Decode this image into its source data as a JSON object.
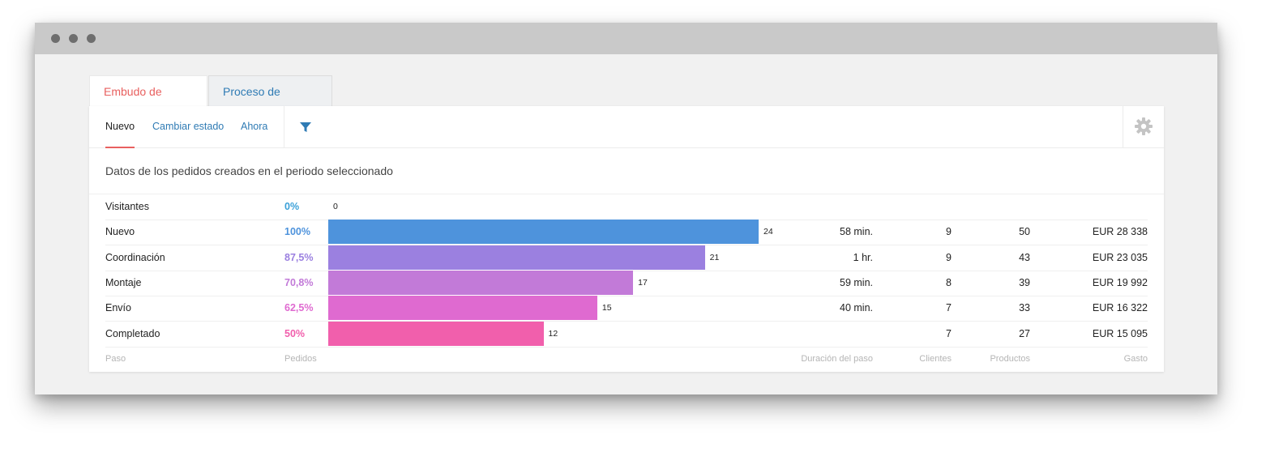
{
  "tabs": [
    {
      "label": "Embudo de ventas",
      "active": true
    },
    {
      "label": "Proceso de negocio",
      "active": false
    }
  ],
  "subnav": {
    "items": [
      {
        "label": "Nuevo",
        "active": true
      },
      {
        "label": "Cambiar estado",
        "active": false
      },
      {
        "label": "Ahora",
        "active": false
      }
    ],
    "filter_icon": "filter-icon",
    "settings_icon": "gear-icon"
  },
  "description": "Datos de los pedidos creados en el periodo seleccionado",
  "funnel": {
    "rows": [
      {
        "step": "Visitantes",
        "pct": "0%",
        "count": "0",
        "duration": "",
        "clients": "",
        "products": "",
        "spend": "",
        "color": "#3aa0d8"
      },
      {
        "step": "Nuevo",
        "pct": "100%",
        "count": "24",
        "duration": "58 min.",
        "clients": "9",
        "products": "50",
        "spend": "EUR 28 338",
        "color": "#4e93dc"
      },
      {
        "step": "Coordinación",
        "pct": "87,5%",
        "count": "21",
        "duration": "1 hr.",
        "clients": "9",
        "products": "43",
        "spend": "EUR 23 035",
        "color": "#9b80e0"
      },
      {
        "step": "Montaje",
        "pct": "70,8%",
        "count": "17",
        "duration": "59 min.",
        "clients": "8",
        "products": "39",
        "spend": "EUR 19 992",
        "color": "#c27ad8"
      },
      {
        "step": "Envío",
        "pct": "62,5%",
        "count": "15",
        "duration": "40 min.",
        "clients": "7",
        "products": "33",
        "spend": "EUR 16 322",
        "color": "#df6ad0"
      },
      {
        "step": "Completado",
        "pct": "50%",
        "count": "12",
        "duration": "",
        "clients": "7",
        "products": "27",
        "spend": "EUR 15 095",
        "color": "#f15fac"
      }
    ],
    "columns": {
      "step": "Paso",
      "orders": "Pedidos",
      "duration": "Duración del paso",
      "clients": "Clientes",
      "products": "Productos",
      "spend": "Gasto"
    },
    "max_count": 24
  }
}
